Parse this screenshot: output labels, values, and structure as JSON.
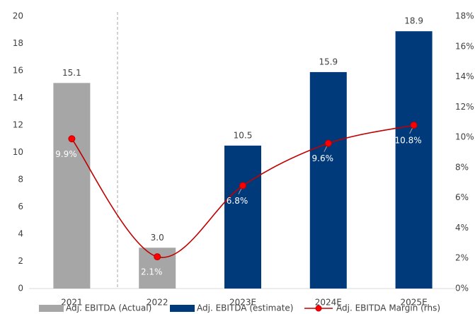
{
  "chart_data": {
    "type": "bar",
    "categories": [
      "2021",
      "2022",
      "2023E",
      "2024E",
      "2025E"
    ],
    "series": [
      {
        "name": "Adj. EBITDA (Actual)",
        "color": "#a6a6a6",
        "values": [
          15.1,
          3.0,
          null,
          null,
          null
        ],
        "value_labels": [
          "15.1",
          "3.0",
          null,
          null,
          null
        ]
      },
      {
        "name": "Adj. EBITDA (estimate)",
        "color": "#003a7a",
        "values": [
          null,
          null,
          10.5,
          15.9,
          18.9
        ],
        "value_labels": [
          null,
          null,
          "10.5",
          "15.9",
          "18.9"
        ]
      },
      {
        "name": "Adj. EBITDA Margin (rhs)",
        "type": "line",
        "axis": "y2",
        "color": "#c00000",
        "values": [
          9.9,
          2.1,
          6.8,
          9.6,
          10.8
        ],
        "value_labels": [
          "9.9%",
          "2.1%",
          "6.8%",
          "9.6%",
          "10.8%"
        ]
      }
    ],
    "ylim": [
      0,
      20
    ],
    "yticks": [
      0,
      2,
      4,
      6,
      8,
      10,
      12,
      14,
      16,
      18,
      20
    ],
    "y2lim": [
      0,
      18
    ],
    "y2ticks": [
      {
        "value": 0,
        "label": "0%"
      },
      {
        "value": 2,
        "label": "2%"
      },
      {
        "value": 4,
        "label": "4%"
      },
      {
        "value": 6,
        "label": "6%"
      },
      {
        "value": 8,
        "label": "8%"
      },
      {
        "value": 10,
        "label": "10%"
      },
      {
        "value": 12,
        "label": "12%"
      },
      {
        "value": 14,
        "label": "14%"
      },
      {
        "value": 16,
        "label": "16%"
      },
      {
        "value": 18,
        "label": "18%"
      }
    ],
    "grid": false,
    "legend": "bottom"
  }
}
